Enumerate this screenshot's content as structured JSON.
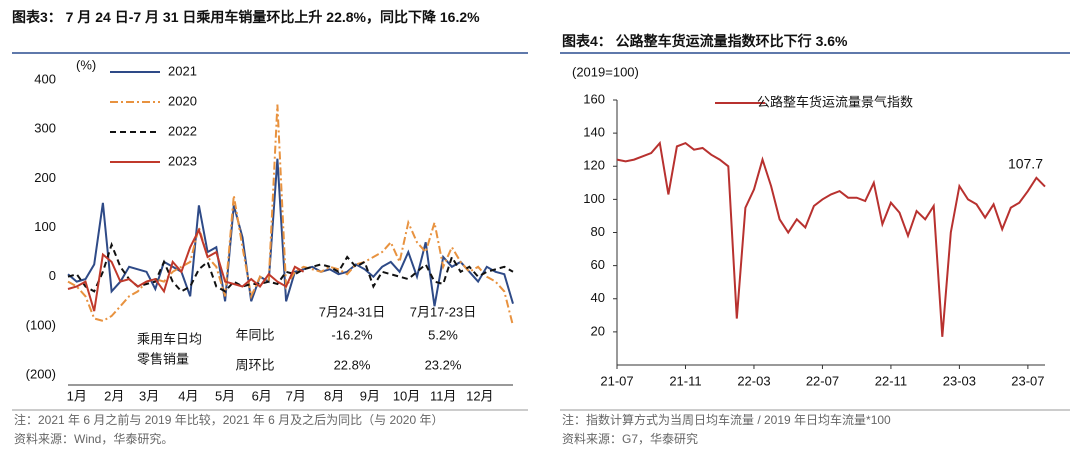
{
  "chart_data": [
    {
      "type": "line",
      "title": "图表3： 7 月 24 日-7 月 31 日乘用车销量环比上升 22.8%，同比下降 16.2%",
      "y_label": "(%)",
      "x": [
        0,
        1,
        2,
        3,
        4,
        5,
        6,
        7,
        8,
        9,
        10,
        11,
        12,
        13,
        14,
        15,
        16,
        17,
        18,
        19,
        20,
        21,
        22,
        23,
        24,
        25,
        26,
        27,
        28,
        29,
        30,
        31,
        32,
        33,
        34,
        35,
        36,
        37,
        38,
        39,
        40,
        41,
        42,
        43,
        44,
        45,
        46,
        47,
        48,
        49,
        50,
        51
      ],
      "xlim": [
        0,
        51
      ],
      "xticks": [
        {
          "value": 1,
          "label": "1月"
        },
        {
          "value": 5.3,
          "label": "2月"
        },
        {
          "value": 9.3,
          "label": "3月"
        },
        {
          "value": 13.8,
          "label": "4月"
        },
        {
          "value": 18,
          "label": "5月"
        },
        {
          "value": 22.2,
          "label": "6月"
        },
        {
          "value": 26.1,
          "label": "7月"
        },
        {
          "value": 30.5,
          "label": "8月"
        },
        {
          "value": 34.6,
          "label": "9月"
        },
        {
          "value": 38.8,
          "label": "10月"
        },
        {
          "value": 43,
          "label": "11月"
        },
        {
          "value": 47.2,
          "label": "12月"
        }
      ],
      "ylim": [
        -200,
        400
      ],
      "yticks": [
        400,
        300,
        200,
        100,
        0,
        {
          "value": -100,
          "label": "(100)"
        },
        {
          "value": -200,
          "label": "(200)"
        }
      ],
      "legend": "upper left",
      "series": [
        {
          "name": "2021",
          "color": "#2e4a87",
          "style": "solid",
          "values": [
            5,
            -10,
            -5,
            25,
            150,
            -30,
            -10,
            20,
            15,
            10,
            -25,
            30,
            20,
            10,
            -40,
            145,
            50,
            60,
            -50,
            145,
            80,
            -50,
            0,
            -10,
            240,
            -50,
            10,
            15,
            20,
            10,
            15,
            5,
            10,
            25,
            15,
            0,
            20,
            30,
            10,
            50,
            0,
            70,
            -60,
            40,
            20,
            30,
            10,
            -10,
            20,
            10,
            5,
            -55
          ]
        },
        {
          "name": "2020",
          "color": "#e8923f",
          "style": "dashdot",
          "values": [
            -10,
            -20,
            -40,
            -85,
            -90,
            -80,
            -60,
            -40,
            -30,
            -10,
            -5,
            -10,
            10,
            20,
            30,
            100,
            40,
            20,
            -40,
            165,
            60,
            -40,
            0,
            -10,
            350,
            -20,
            10,
            20,
            15,
            10,
            20,
            15,
            5,
            25,
            30,
            40,
            50,
            70,
            30,
            110,
            70,
            50,
            110,
            20,
            60,
            30,
            10,
            20,
            0,
            -10,
            -30,
            -100
          ]
        },
        {
          "name": "2022",
          "color": "#111111",
          "style": "dashed",
          "values": [
            0,
            5,
            -20,
            -30,
            10,
            65,
            20,
            -5,
            -20,
            -15,
            -10,
            30,
            -10,
            -30,
            -20,
            15,
            30,
            -20,
            -30,
            -10,
            -20,
            -15,
            -15,
            -10,
            -15,
            10,
            5,
            15,
            20,
            25,
            20,
            10,
            40,
            20,
            30,
            -20,
            10,
            5,
            0,
            -5,
            10,
            25,
            -10,
            -15,
            40,
            10,
            20,
            0,
            10,
            15,
            20,
            10
          ]
        },
        {
          "name": "2023",
          "color": "#c0392b",
          "style": "solid",
          "values": [
            -25,
            -20,
            -10,
            -70,
            45,
            30,
            -10,
            -5,
            -20,
            -10,
            -5,
            -30,
            30,
            10,
            60,
            95,
            40,
            50,
            -10,
            -15,
            -20,
            -5,
            -20,
            5,
            -10,
            -20,
            20,
            10,
            null,
            null,
            null,
            null,
            null,
            null,
            null,
            null,
            null,
            null,
            null,
            null,
            null,
            null,
            null,
            null,
            null,
            null,
            null,
            null,
            null,
            null,
            null,
            null
          ]
        }
      ],
      "annotations": [
        "乘用车日均",
        "零售销量",
        "年同比",
        "周环比",
        "7月24-31日",
        "-16.2%",
        "22.8%",
        "7月17-23日",
        "5.2%",
        "23.2%"
      ],
      "note": "注：2021 年 6 月之前与 2019 年比较，2021 年 6 月及之后为同比（与 2020 年）",
      "source": "资料来源：Wind，华泰研究。"
    },
    {
      "type": "line",
      "title": "图表4： 公路整车货运流量指数环比下行 3.6%",
      "y_label": "(2019=100)",
      "x": [
        0,
        1,
        2,
        3,
        4,
        5,
        6,
        7,
        8,
        9,
        10,
        11,
        12,
        13,
        14,
        15,
        16,
        17,
        18,
        19,
        20,
        21,
        22,
        23,
        24,
        25,
        26,
        27,
        28,
        29,
        30,
        31,
        32,
        33,
        34,
        35,
        36,
        37,
        38,
        39,
        40,
        41,
        42,
        43,
        44,
        45,
        46,
        47,
        48,
        49,
        50
      ],
      "xlim": [
        0,
        50
      ],
      "xticks": [
        {
          "value": 0,
          "label": "21-07"
        },
        {
          "value": 8,
          "label": "21-11"
        },
        {
          "value": 16,
          "label": "22-03"
        },
        {
          "value": 24,
          "label": "22-07"
        },
        {
          "value": 32,
          "label": "22-11"
        },
        {
          "value": 40,
          "label": "23-03"
        },
        {
          "value": 48,
          "label": "23-07"
        }
      ],
      "ylim": [
        0,
        160
      ],
      "yticks": [
        20,
        40,
        60,
        80,
        100,
        120,
        140,
        160
      ],
      "legend": "upper center",
      "label_last": true,
      "series": [
        {
          "name": "公路整车货运流量景气指数",
          "color": "#b8312f",
          "style": "solid",
          "values": [
            124,
            123,
            124,
            126,
            128,
            134,
            103,
            132,
            134,
            130,
            131,
            127,
            124,
            120,
            28,
            95,
            106,
            124,
            108,
            88,
            80,
            88,
            83,
            96,
            100,
            103,
            105,
            101,
            101,
            99,
            110,
            85,
            98,
            92,
            78,
            93,
            88,
            96,
            17,
            80,
            108,
            100,
            97,
            89,
            97,
            82,
            95,
            98,
            105,
            113,
            107.7
          ]
        }
      ],
      "note": "注：指数计算方式为当周日均车流量 / 2019 年日均车流量*100",
      "source": "资料来源：G7，华泰研究"
    }
  ]
}
